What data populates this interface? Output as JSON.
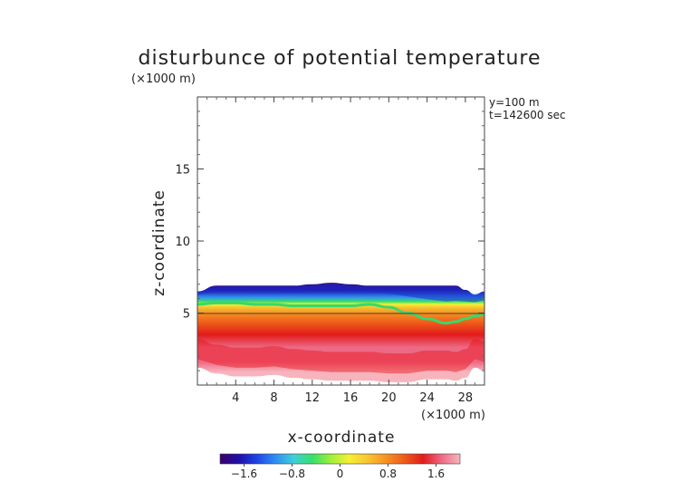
{
  "chart_data": {
    "type": "heatmap",
    "title": "disturbunce of potential temperature",
    "unit_label": "(×1000 m)",
    "xlabel": "x-coordinate",
    "ylabel": "z-coordinate",
    "annotation_lines": [
      "y=100  m",
      "t=142600 sec"
    ],
    "x_unit": "(×1000 m)",
    "xlim": [
      0,
      30
    ],
    "ylim": [
      0,
      20
    ],
    "x_ticks": [
      4,
      8,
      12,
      16,
      20,
      24,
      28
    ],
    "x_tick_labels": [
      "4",
      "8",
      "12",
      "16",
      "20",
      "24",
      "28"
    ],
    "y_ticks": [
      5,
      10,
      15
    ],
    "y_tick_labels": [
      "5",
      "10",
      "15"
    ],
    "colorbar": {
      "min": -2.0,
      "max": 2.0,
      "ticks": [
        -1.6,
        -0.8,
        0,
        0.8,
        1.6
      ],
      "tick_labels": [
        "−1.6",
        "−0.8",
        "0",
        "0.8",
        "1.6"
      ],
      "colors": [
        "#3b0069",
        "#1f0fa8",
        "#1f43e6",
        "#2f8ef4",
        "#3fd0d8",
        "#36e06a",
        "#9ef03a",
        "#f6f032",
        "#f8c432",
        "#f59122",
        "#ee5a1a",
        "#e11b1b",
        "#ed6a86",
        "#f8b4bc"
      ]
    },
    "field": {
      "x": [
        0,
        2,
        4,
        6,
        8,
        10,
        12,
        14,
        16,
        18,
        20,
        22,
        24,
        26,
        27,
        28,
        29,
        30
      ],
      "layer_top": [
        6.5,
        6.9,
        6.9,
        6.9,
        6.9,
        6.9,
        7.0,
        7.1,
        7.0,
        6.9,
        6.9,
        6.9,
        6.9,
        6.9,
        6.9,
        6.6,
        6.3,
        6.5
      ],
      "zero_line": [
        5.6,
        5.7,
        5.7,
        5.6,
        5.6,
        5.5,
        5.5,
        5.5,
        5.5,
        5.6,
        5.4,
        5.0,
        4.6,
        4.3,
        4.4,
        4.6,
        4.8,
        4.9
      ],
      "warm_top": [
        5.4,
        5.4,
        5.3,
        5.2,
        5.2,
        5.3,
        5.1,
        5.2,
        5.3,
        5.2,
        5.0,
        4.6,
        4.2,
        4.0,
        4.1,
        4.3,
        4.5,
        4.6
      ],
      "layer_bottom": [
        1.2,
        0.8,
        0.6,
        0.6,
        0.7,
        0.5,
        0.4,
        0.3,
        0.3,
        0.3,
        0.2,
        0.2,
        0.4,
        0.4,
        0.3,
        0.5,
        1.2,
        1.0
      ],
      "z_cold_max": -1.9,
      "z_warm_max": 1.9
    }
  }
}
